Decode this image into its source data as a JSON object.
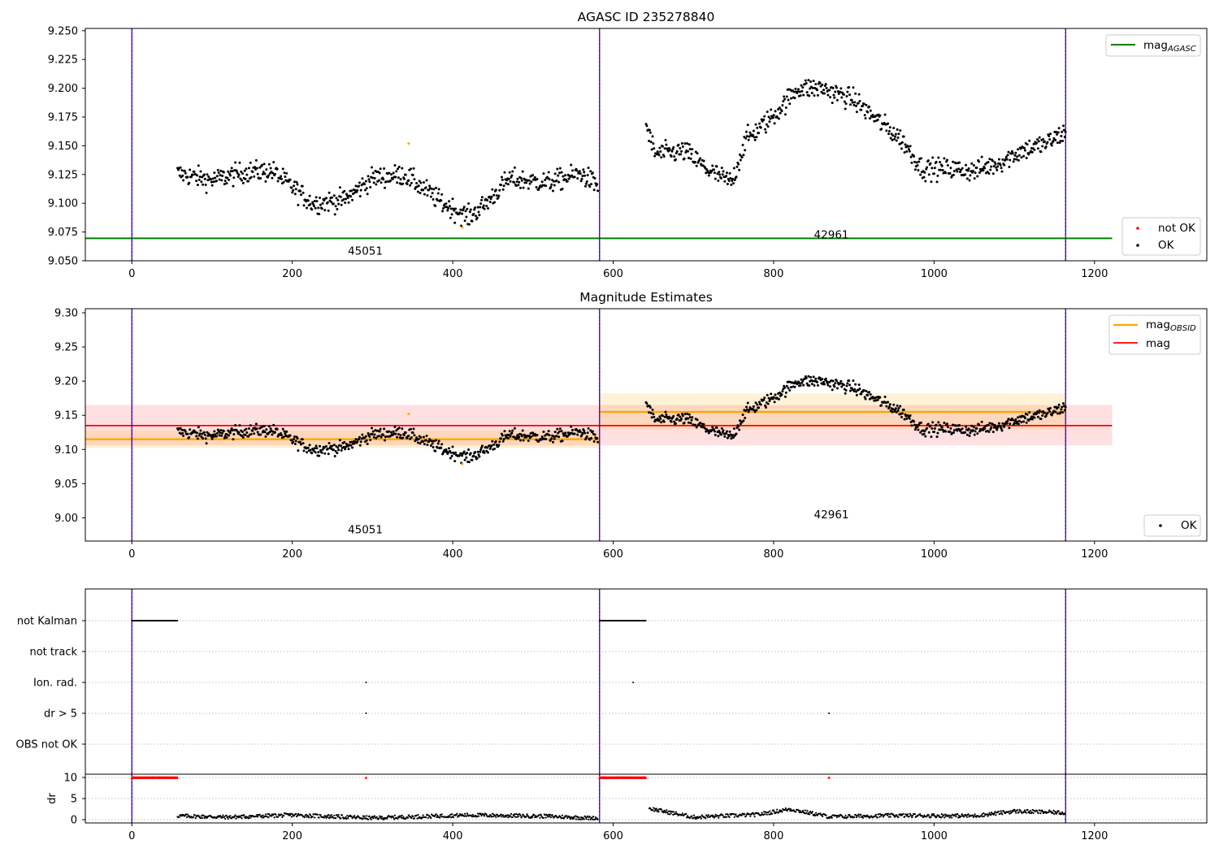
{
  "chart_data": [
    {
      "name": "mag-panel",
      "type": "scatter",
      "title": "AGASC ID 235278840",
      "xlabel": "",
      "ylabel": "",
      "xlim": [
        -58,
        1340
      ],
      "ylim": [
        9.05,
        9.252
      ],
      "xticks": [
        0,
        200,
        400,
        600,
        800,
        1000,
        1200
      ],
      "yticks": [
        9.05,
        9.075,
        9.1,
        9.125,
        9.15,
        9.175,
        9.2,
        9.225,
        9.25
      ],
      "ytick_labels": [
        "9.050",
        "9.075",
        "9.100",
        "9.125",
        "9.150",
        "9.175",
        "9.200",
        "9.225",
        "9.250"
      ],
      "obs_boundaries": [
        0,
        583,
        1164
      ],
      "obsid_labels": [
        {
          "text": "45051",
          "x": 291,
          "y": 9.059
        },
        {
          "text": "42961",
          "x": 872,
          "y": 9.073
        }
      ],
      "mag_agasc": {
        "value": 9.0695,
        "x_range": [
          -58,
          1222
        ],
        "color": "#008000"
      },
      "legend_lines": [
        {
          "label": "mag",
          "subscript": "AGASC",
          "color": "#008000"
        }
      ],
      "legend_points": [
        {
          "label": "not OK",
          "color": "#ff0000"
        },
        {
          "label": "OK",
          "color": "#000000"
        }
      ],
      "series": [
        {
          "segment": "obs1",
          "color": "#000000",
          "x_range": [
            57,
            581
          ],
          "y_knots": [
            [
              57,
              9.126
            ],
            [
              100,
              9.12
            ],
            [
              140,
              9.127
            ],
            [
              175,
              9.128
            ],
            [
              225,
              9.1
            ],
            [
              265,
              9.103
            ],
            [
              300,
              9.122
            ],
            [
              340,
              9.125
            ],
            [
              390,
              9.099
            ],
            [
              420,
              9.088
            ],
            [
              440,
              9.099
            ],
            [
              470,
              9.121
            ],
            [
              520,
              9.118
            ],
            [
              560,
              9.126
            ],
            [
              581,
              9.115
            ]
          ],
          "noise": 0.009
        },
        {
          "segment": "obs2",
          "color": "#000000",
          "x_range": [
            641,
            1164
          ],
          "y_knots": [
            [
              641,
              9.168
            ],
            [
              652,
              9.143
            ],
            [
              690,
              9.145
            ],
            [
              720,
              9.128
            ],
            [
              748,
              9.118
            ],
            [
              765,
              9.155
            ],
            [
              800,
              9.176
            ],
            [
              830,
              9.2
            ],
            [
              860,
              9.2
            ],
            [
              900,
              9.19
            ],
            [
              930,
              9.172
            ],
            [
              960,
              9.155
            ],
            [
              985,
              9.13
            ],
            [
              1020,
              9.13
            ],
            [
              1050,
              9.128
            ],
            [
              1080,
              9.135
            ],
            [
              1110,
              9.146
            ],
            [
              1140,
              9.152
            ],
            [
              1164,
              9.162
            ]
          ],
          "noise": 0.009
        }
      ],
      "orange_points": [
        [
          345,
          9.152
        ],
        [
          412,
          9.079
        ]
      ]
    },
    {
      "name": "estimates-panel",
      "type": "scatter",
      "title": "Magnitude Estimates",
      "xlim": [
        -58,
        1340
      ],
      "ylim": [
        8.966,
        9.306
      ],
      "xticks": [
        0,
        200,
        400,
        600,
        800,
        1000,
        1200
      ],
      "yticks": [
        9.0,
        9.05,
        9.1,
        9.15,
        9.2,
        9.25,
        9.3
      ],
      "ytick_labels": [
        "9.00",
        "9.05",
        "9.10",
        "9.15",
        "9.20",
        "9.25",
        "9.30"
      ],
      "obs_boundaries": [
        0,
        583,
        1164
      ],
      "obsid_labels": [
        {
          "text": "45051",
          "x": 291,
          "y": 8.983
        },
        {
          "text": "42961",
          "x": 872,
          "y": 9.005
        }
      ],
      "mag_line": {
        "value": 9.135,
        "band": [
          9.106,
          9.165
        ],
        "x_range": [
          -58,
          1222
        ],
        "color": "#ff0000"
      },
      "obsid_mags": [
        {
          "value": 9.115,
          "band": [
            9.102,
            9.128
          ],
          "x_range": [
            -58,
            583
          ]
        },
        {
          "value": 9.155,
          "band": [
            9.13,
            9.182
          ],
          "x_range": [
            583,
            1164
          ]
        }
      ],
      "legend_lines": [
        {
          "label": "mag",
          "subscript": "OBSID",
          "color": "#ffa500"
        },
        {
          "label": "mag",
          "subscript": "",
          "color": "#ff0000"
        }
      ],
      "legend_points": [
        {
          "label": "OK",
          "color": "#000000"
        }
      ]
    },
    {
      "name": "flags-panel",
      "type": "scatter",
      "xlim": [
        -58,
        1340
      ],
      "categories": [
        "not Kalman",
        "not track",
        "Ion. rad.",
        "dr > 5",
        "OBS not OK"
      ],
      "flag_marks": {
        "not Kalman": [
          [
            0,
            57
          ],
          [
            583,
            641
          ]
        ],
        "Ion. rad.": [
          [
            292,
            292
          ],
          [
            625,
            625
          ]
        ],
        "dr > 5": [
          [
            292,
            292
          ],
          [
            869,
            869
          ]
        ]
      },
      "obs_boundaries": [
        0,
        583,
        1164
      ]
    },
    {
      "name": "dr-panel",
      "type": "scatter",
      "ylabel": "dr",
      "xlim": [
        -58,
        1340
      ],
      "ylim": [
        -0.5,
        10.3
      ],
      "xticks": [
        0,
        200,
        400,
        600,
        800,
        1000,
        1200
      ],
      "yticks": [
        0,
        5,
        10
      ],
      "ytick_labels": [
        "0",
        "5",
        "10"
      ],
      "obs_boundaries": [
        0,
        583,
        1164
      ],
      "capped_marks": [
        [
          0,
          57
        ],
        [
          583,
          641
        ],
        [
          292,
          292
        ],
        [
          869,
          869
        ]
      ],
      "capped_value": 10
    }
  ]
}
